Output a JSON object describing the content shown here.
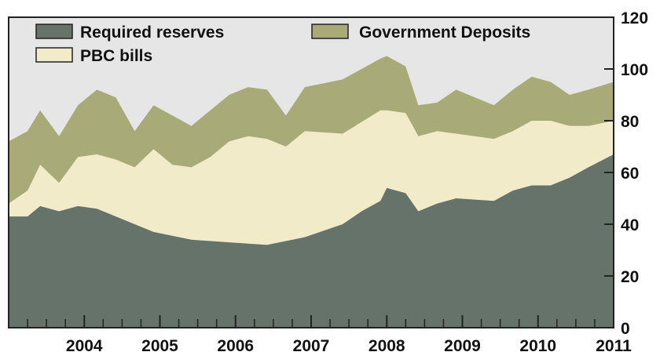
{
  "chart_data": {
    "type": "area",
    "stacked": true,
    "x_start": "2003-01",
    "x_end": "2011-01",
    "x_ticks": [
      "2004",
      "2005",
      "2006",
      "2007",
      "2008",
      "2009",
      "2010",
      "2011"
    ],
    "y_ticks": [
      "0",
      "20",
      "40",
      "60",
      "80",
      "100",
      "120"
    ],
    "ylim": [
      0,
      120
    ],
    "y_axis_side": "right",
    "grid": false,
    "plot_background": "#e6e6e6",
    "legend": {
      "placement": "top",
      "items": [
        {
          "label": "Required reserves",
          "color": "#66736a"
        },
        {
          "label": "Government Deposits",
          "color": "#a8aa78"
        },
        {
          "label": "PBC bills",
          "color": "#f2ebca"
        }
      ]
    },
    "series": [
      {
        "name": "Required reserves",
        "color": "#66736a",
        "points": [
          {
            "x": "2003-01",
            "y": 43
          },
          {
            "x": "2003-04",
            "y": 43
          },
          {
            "x": "2003-06",
            "y": 47
          },
          {
            "x": "2003-09",
            "y": 45
          },
          {
            "x": "2003-12",
            "y": 47
          },
          {
            "x": "2004-03",
            "y": 46
          },
          {
            "x": "2004-06",
            "y": 43
          },
          {
            "x": "2004-09",
            "y": 40
          },
          {
            "x": "2004-12",
            "y": 37
          },
          {
            "x": "2005-06",
            "y": 34
          },
          {
            "x": "2005-12",
            "y": 33
          },
          {
            "x": "2006-06",
            "y": 32
          },
          {
            "x": "2006-12",
            "y": 35
          },
          {
            "x": "2007-06",
            "y": 40
          },
          {
            "x": "2007-09",
            "y": 45
          },
          {
            "x": "2007-12",
            "y": 49
          },
          {
            "x": "2008-01",
            "y": 54
          },
          {
            "x": "2008-04",
            "y": 52
          },
          {
            "x": "2008-06",
            "y": 45
          },
          {
            "x": "2008-09",
            "y": 48
          },
          {
            "x": "2008-12",
            "y": 50
          },
          {
            "x": "2009-06",
            "y": 49
          },
          {
            "x": "2009-09",
            "y": 53
          },
          {
            "x": "2009-12",
            "y": 55
          },
          {
            "x": "2010-03",
            "y": 55
          },
          {
            "x": "2010-06",
            "y": 58
          },
          {
            "x": "2010-09",
            "y": 62
          },
          {
            "x": "2011-01",
            "y": 67
          }
        ]
      },
      {
        "name": "PBC bills",
        "color": "#f2ebca",
        "cumulative_points": [
          {
            "x": "2003-01",
            "y": 48
          },
          {
            "x": "2003-04",
            "y": 53
          },
          {
            "x": "2003-06",
            "y": 63
          },
          {
            "x": "2003-09",
            "y": 56
          },
          {
            "x": "2003-12",
            "y": 66
          },
          {
            "x": "2004-03",
            "y": 67
          },
          {
            "x": "2004-06",
            "y": 65
          },
          {
            "x": "2004-09",
            "y": 62
          },
          {
            "x": "2004-12",
            "y": 69
          },
          {
            "x": "2005-03",
            "y": 63
          },
          {
            "x": "2005-06",
            "y": 62
          },
          {
            "x": "2005-09",
            "y": 66
          },
          {
            "x": "2005-12",
            "y": 72
          },
          {
            "x": "2006-03",
            "y": 74
          },
          {
            "x": "2006-06",
            "y": 73
          },
          {
            "x": "2006-09",
            "y": 70
          },
          {
            "x": "2006-12",
            "y": 76
          },
          {
            "x": "2007-06",
            "y": 75
          },
          {
            "x": "2007-12",
            "y": 84
          },
          {
            "x": "2008-01",
            "y": 84
          },
          {
            "x": "2008-04",
            "y": 83
          },
          {
            "x": "2008-06",
            "y": 74
          },
          {
            "x": "2008-09",
            "y": 76
          },
          {
            "x": "2008-12",
            "y": 75
          },
          {
            "x": "2009-06",
            "y": 73
          },
          {
            "x": "2009-09",
            "y": 76
          },
          {
            "x": "2009-12",
            "y": 80
          },
          {
            "x": "2010-03",
            "y": 80
          },
          {
            "x": "2010-06",
            "y": 78
          },
          {
            "x": "2010-09",
            "y": 78
          },
          {
            "x": "2011-01",
            "y": 80
          }
        ]
      },
      {
        "name": "Government Deposits",
        "color": "#a8aa78",
        "cumulative_points": [
          {
            "x": "2003-01",
            "y": 72
          },
          {
            "x": "2003-04",
            "y": 76
          },
          {
            "x": "2003-06",
            "y": 84
          },
          {
            "x": "2003-09",
            "y": 74
          },
          {
            "x": "2003-12",
            "y": 86
          },
          {
            "x": "2004-03",
            "y": 92
          },
          {
            "x": "2004-06",
            "y": 89
          },
          {
            "x": "2004-09",
            "y": 76
          },
          {
            "x": "2004-12",
            "y": 86
          },
          {
            "x": "2005-03",
            "y": 82
          },
          {
            "x": "2005-06",
            "y": 78
          },
          {
            "x": "2005-09",
            "y": 84
          },
          {
            "x": "2005-12",
            "y": 90
          },
          {
            "x": "2006-03",
            "y": 93
          },
          {
            "x": "2006-06",
            "y": 92
          },
          {
            "x": "2006-09",
            "y": 82
          },
          {
            "x": "2006-12",
            "y": 93
          },
          {
            "x": "2007-06",
            "y": 96
          },
          {
            "x": "2007-12",
            "y": 104
          },
          {
            "x": "2008-01",
            "y": 105
          },
          {
            "x": "2008-04",
            "y": 101
          },
          {
            "x": "2008-06",
            "y": 86
          },
          {
            "x": "2008-09",
            "y": 87
          },
          {
            "x": "2008-12",
            "y": 92
          },
          {
            "x": "2009-06",
            "y": 86
          },
          {
            "x": "2009-09",
            "y": 92
          },
          {
            "x": "2009-12",
            "y": 97
          },
          {
            "x": "2010-03",
            "y": 95
          },
          {
            "x": "2010-06",
            "y": 90
          },
          {
            "x": "2010-09",
            "y": 92
          },
          {
            "x": "2011-01",
            "y": 95
          }
        ]
      }
    ]
  }
}
